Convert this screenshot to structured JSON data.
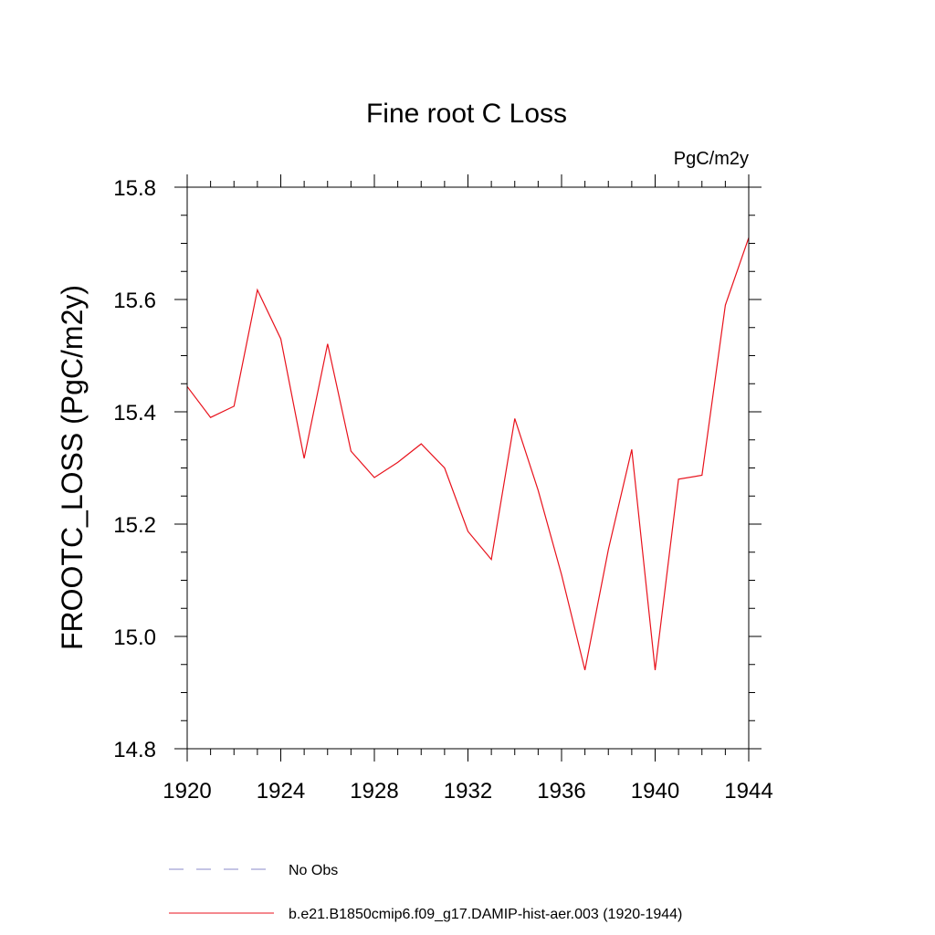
{
  "chart_data": {
    "type": "line",
    "title": "Fine root C Loss",
    "units": "PgC/m2y",
    "ylabel": "FROOTC_LOSS  (PgC/m2y)",
    "xlabel": "",
    "xlim": [
      1920,
      1944
    ],
    "ylim": [
      14.8,
      15.8
    ],
    "x_ticks": [
      1920,
      1924,
      1928,
      1932,
      1936,
      1940,
      1944
    ],
    "x_tick_labels": [
      "1920",
      "1924",
      "1928",
      "1932",
      "1936",
      "1940",
      "1944"
    ],
    "y_ticks": [
      14.8,
      15.0,
      15.2,
      15.4,
      15.6,
      15.8
    ],
    "y_tick_labels": [
      "14.8",
      "15.0",
      "15.2",
      "15.4",
      "15.6",
      "15.8"
    ],
    "grid": false,
    "legend_position": "bottom",
    "legend": [
      {
        "label": "No Obs",
        "style": "dashed",
        "color": "#8a8ac8"
      },
      {
        "label": "b.e21.B1850cmip6.f09_g17.DAMIP-hist-aer.003 (1920-1944)",
        "style": "solid",
        "color": "#e8121c"
      }
    ],
    "series": [
      {
        "color": "#e8121c",
        "x": [
          1920,
          1921,
          1922,
          1923,
          1924,
          1925,
          1926,
          1927,
          1928,
          1929,
          1930,
          1931,
          1932,
          1933,
          1934,
          1935,
          1936,
          1937,
          1938,
          1939,
          1940,
          1941,
          1942,
          1943,
          1944
        ],
        "values": [
          15.445,
          15.39,
          15.41,
          15.617,
          15.53,
          15.317,
          15.521,
          15.33,
          15.283,
          15.31,
          15.343,
          15.3,
          15.187,
          15.137,
          15.388,
          15.26,
          15.11,
          14.94,
          15.155,
          15.333,
          14.94,
          15.28,
          15.287,
          15.59,
          15.71
        ]
      }
    ]
  }
}
